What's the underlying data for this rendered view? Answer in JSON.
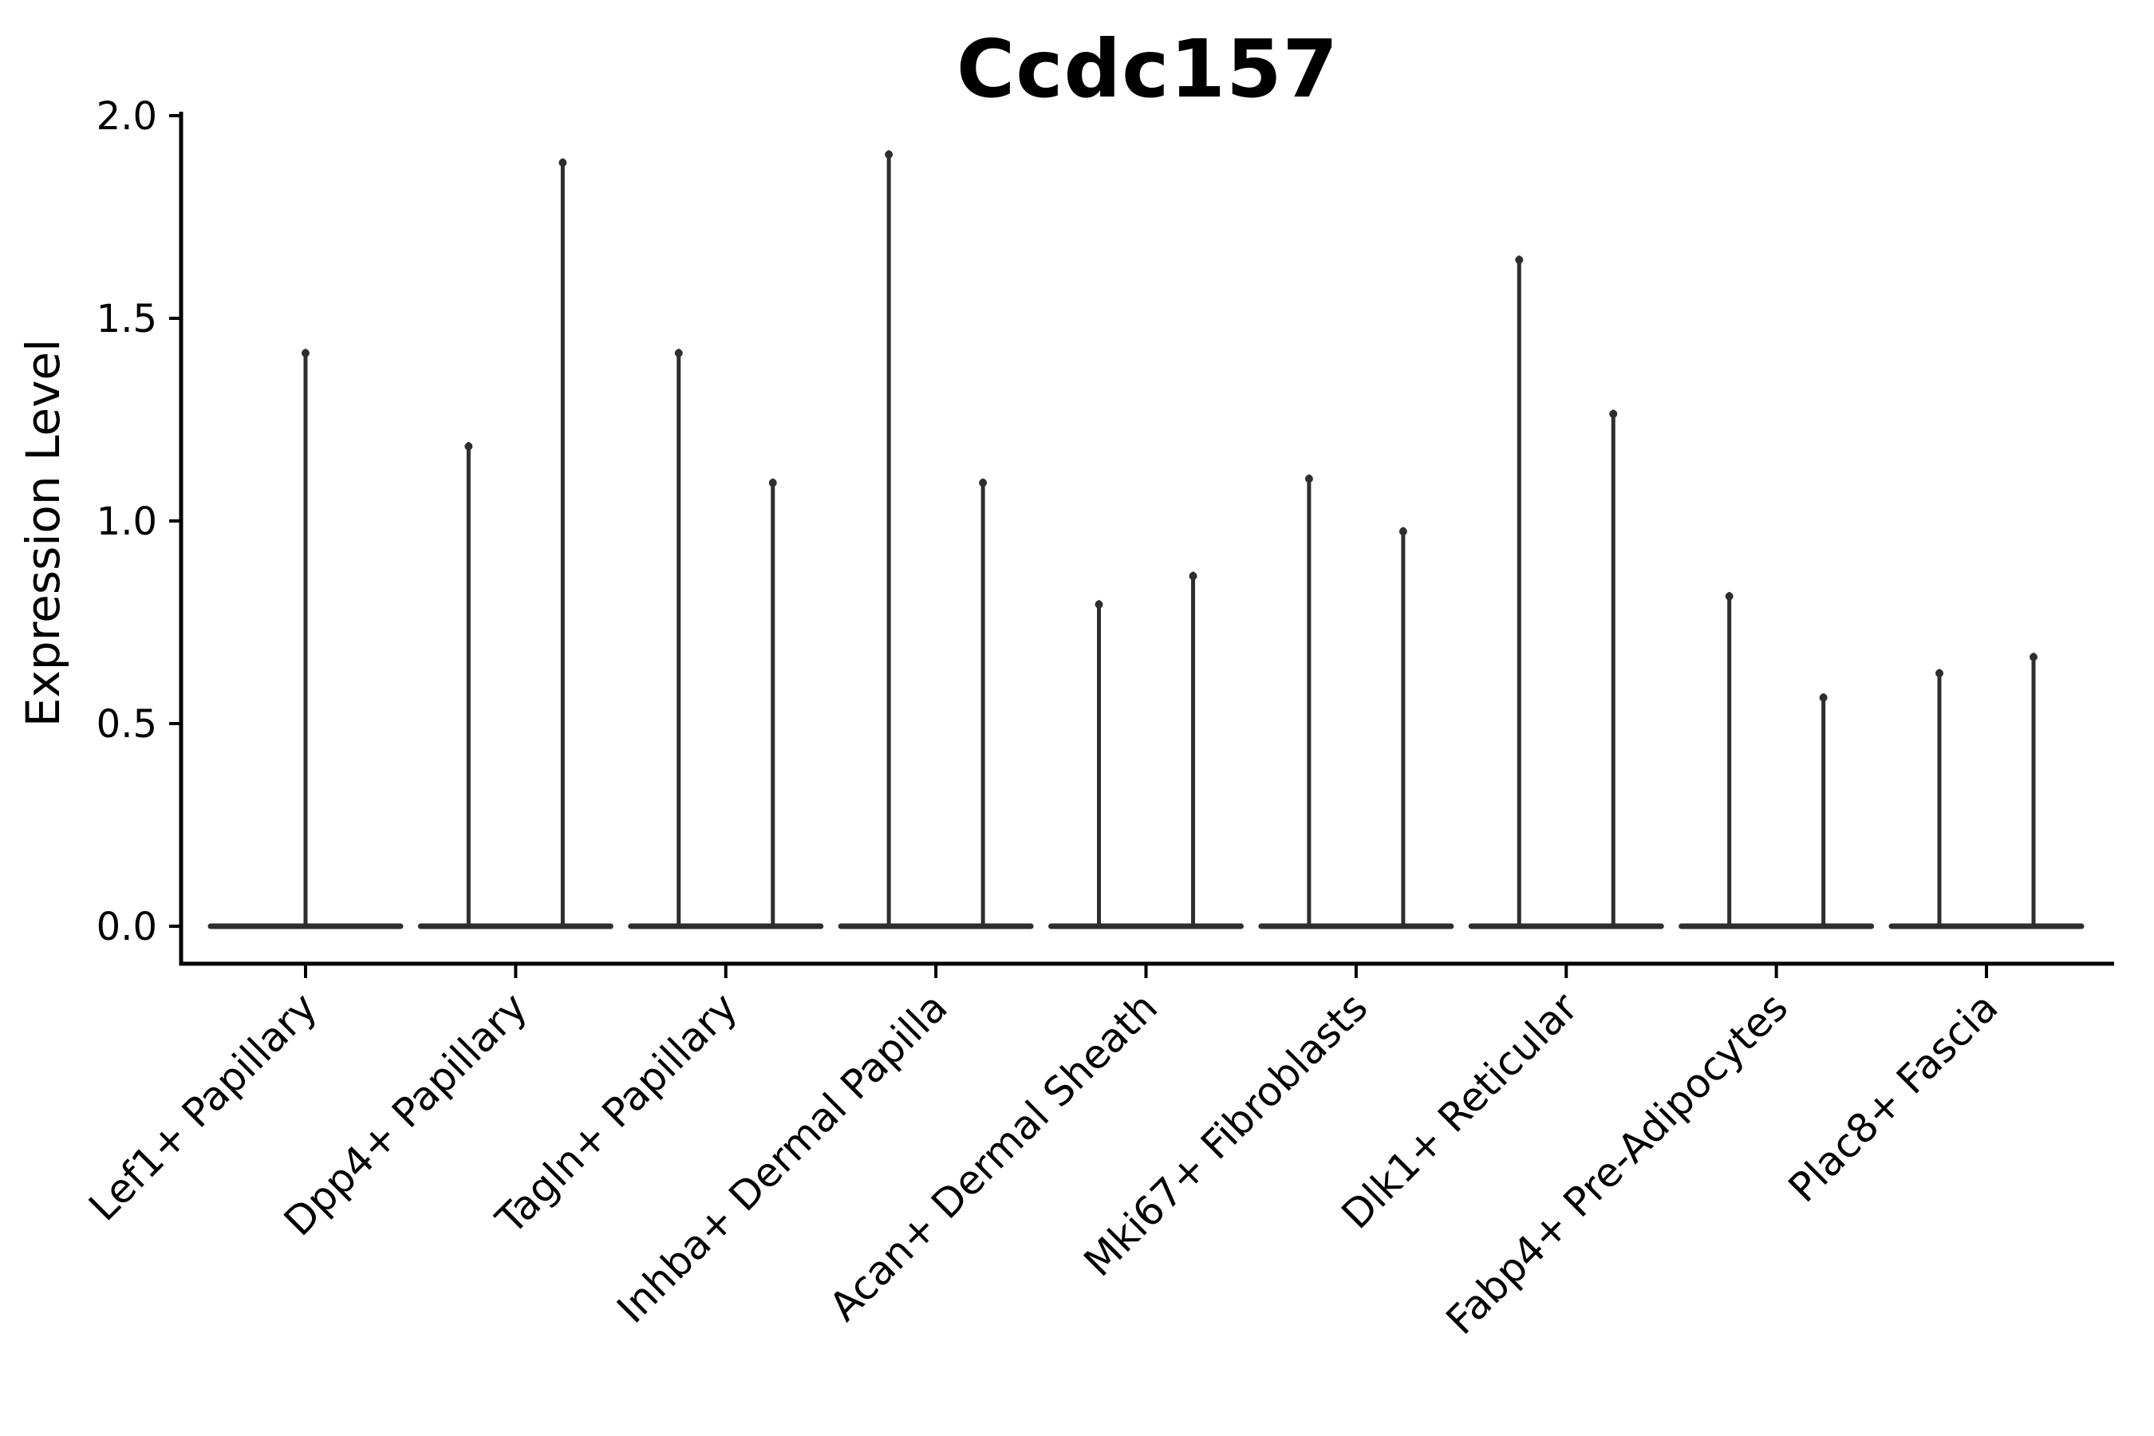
{
  "title": "Ccdc157",
  "ylabel": "Expression Level",
  "chart_data": {
    "type": "violin",
    "title": "Ccdc157",
    "xlabel": "",
    "ylabel": "Expression Level",
    "ylim": [
      -0.09,
      2.01
    ],
    "yticks": [
      "0.0",
      "0.5",
      "1.0",
      "1.5",
      "2.0"
    ],
    "ytick_values": [
      0.0,
      0.5,
      1.0,
      1.5,
      2.0
    ],
    "grid": false,
    "legend_position": "none",
    "categories": [
      "Lef1+ Papillary",
      "Dpp4+ Papillary",
      "Tagln+ Papillary",
      "Inhba+ Dermal Papilla",
      "Acan+ Dermal Sheath",
      "Mki67+ Fibroblasts",
      "Dlk1+ Reticular",
      "Fabp4+ Pre-Adipocytes",
      "Plac8+ Fascia"
    ],
    "violins": [
      {
        "category": "Lef1+ Papillary",
        "peaks": [
          1.42
        ]
      },
      {
        "category": "Dpp4+ Papillary",
        "peaks": [
          1.19,
          1.89
        ]
      },
      {
        "category": "Tagln+ Papillary",
        "peaks": [
          1.42,
          1.1
        ]
      },
      {
        "category": "Inhba+ Dermal Papilla",
        "peaks": [
          1.91,
          1.1
        ]
      },
      {
        "category": "Acan+ Dermal Sheath",
        "peaks": [
          0.8,
          0.87
        ]
      },
      {
        "category": "Mki67+ Fibroblasts",
        "peaks": [
          1.11,
          0.98
        ]
      },
      {
        "category": "Dlk1+ Reticular",
        "peaks": [
          1.65,
          1.27
        ]
      },
      {
        "category": "Fabp4+ Pre-Adipocytes",
        "peaks": [
          0.82,
          0.57
        ]
      },
      {
        "category": "Plac8+ Fascia",
        "peaks": [
          0.63,
          0.67
        ]
      }
    ],
    "violin_shape_note": "zero-inflated single-cell expression: wide flat base at 0 with one thin vertical spike per violin reaching the peak value; categories with two violins are dodged side-by-side, single-violin category is centered",
    "colors": {
      "violin_stroke": "#2e2e2e",
      "axis": "#000000",
      "text": "#000000",
      "background": "#ffffff"
    }
  }
}
